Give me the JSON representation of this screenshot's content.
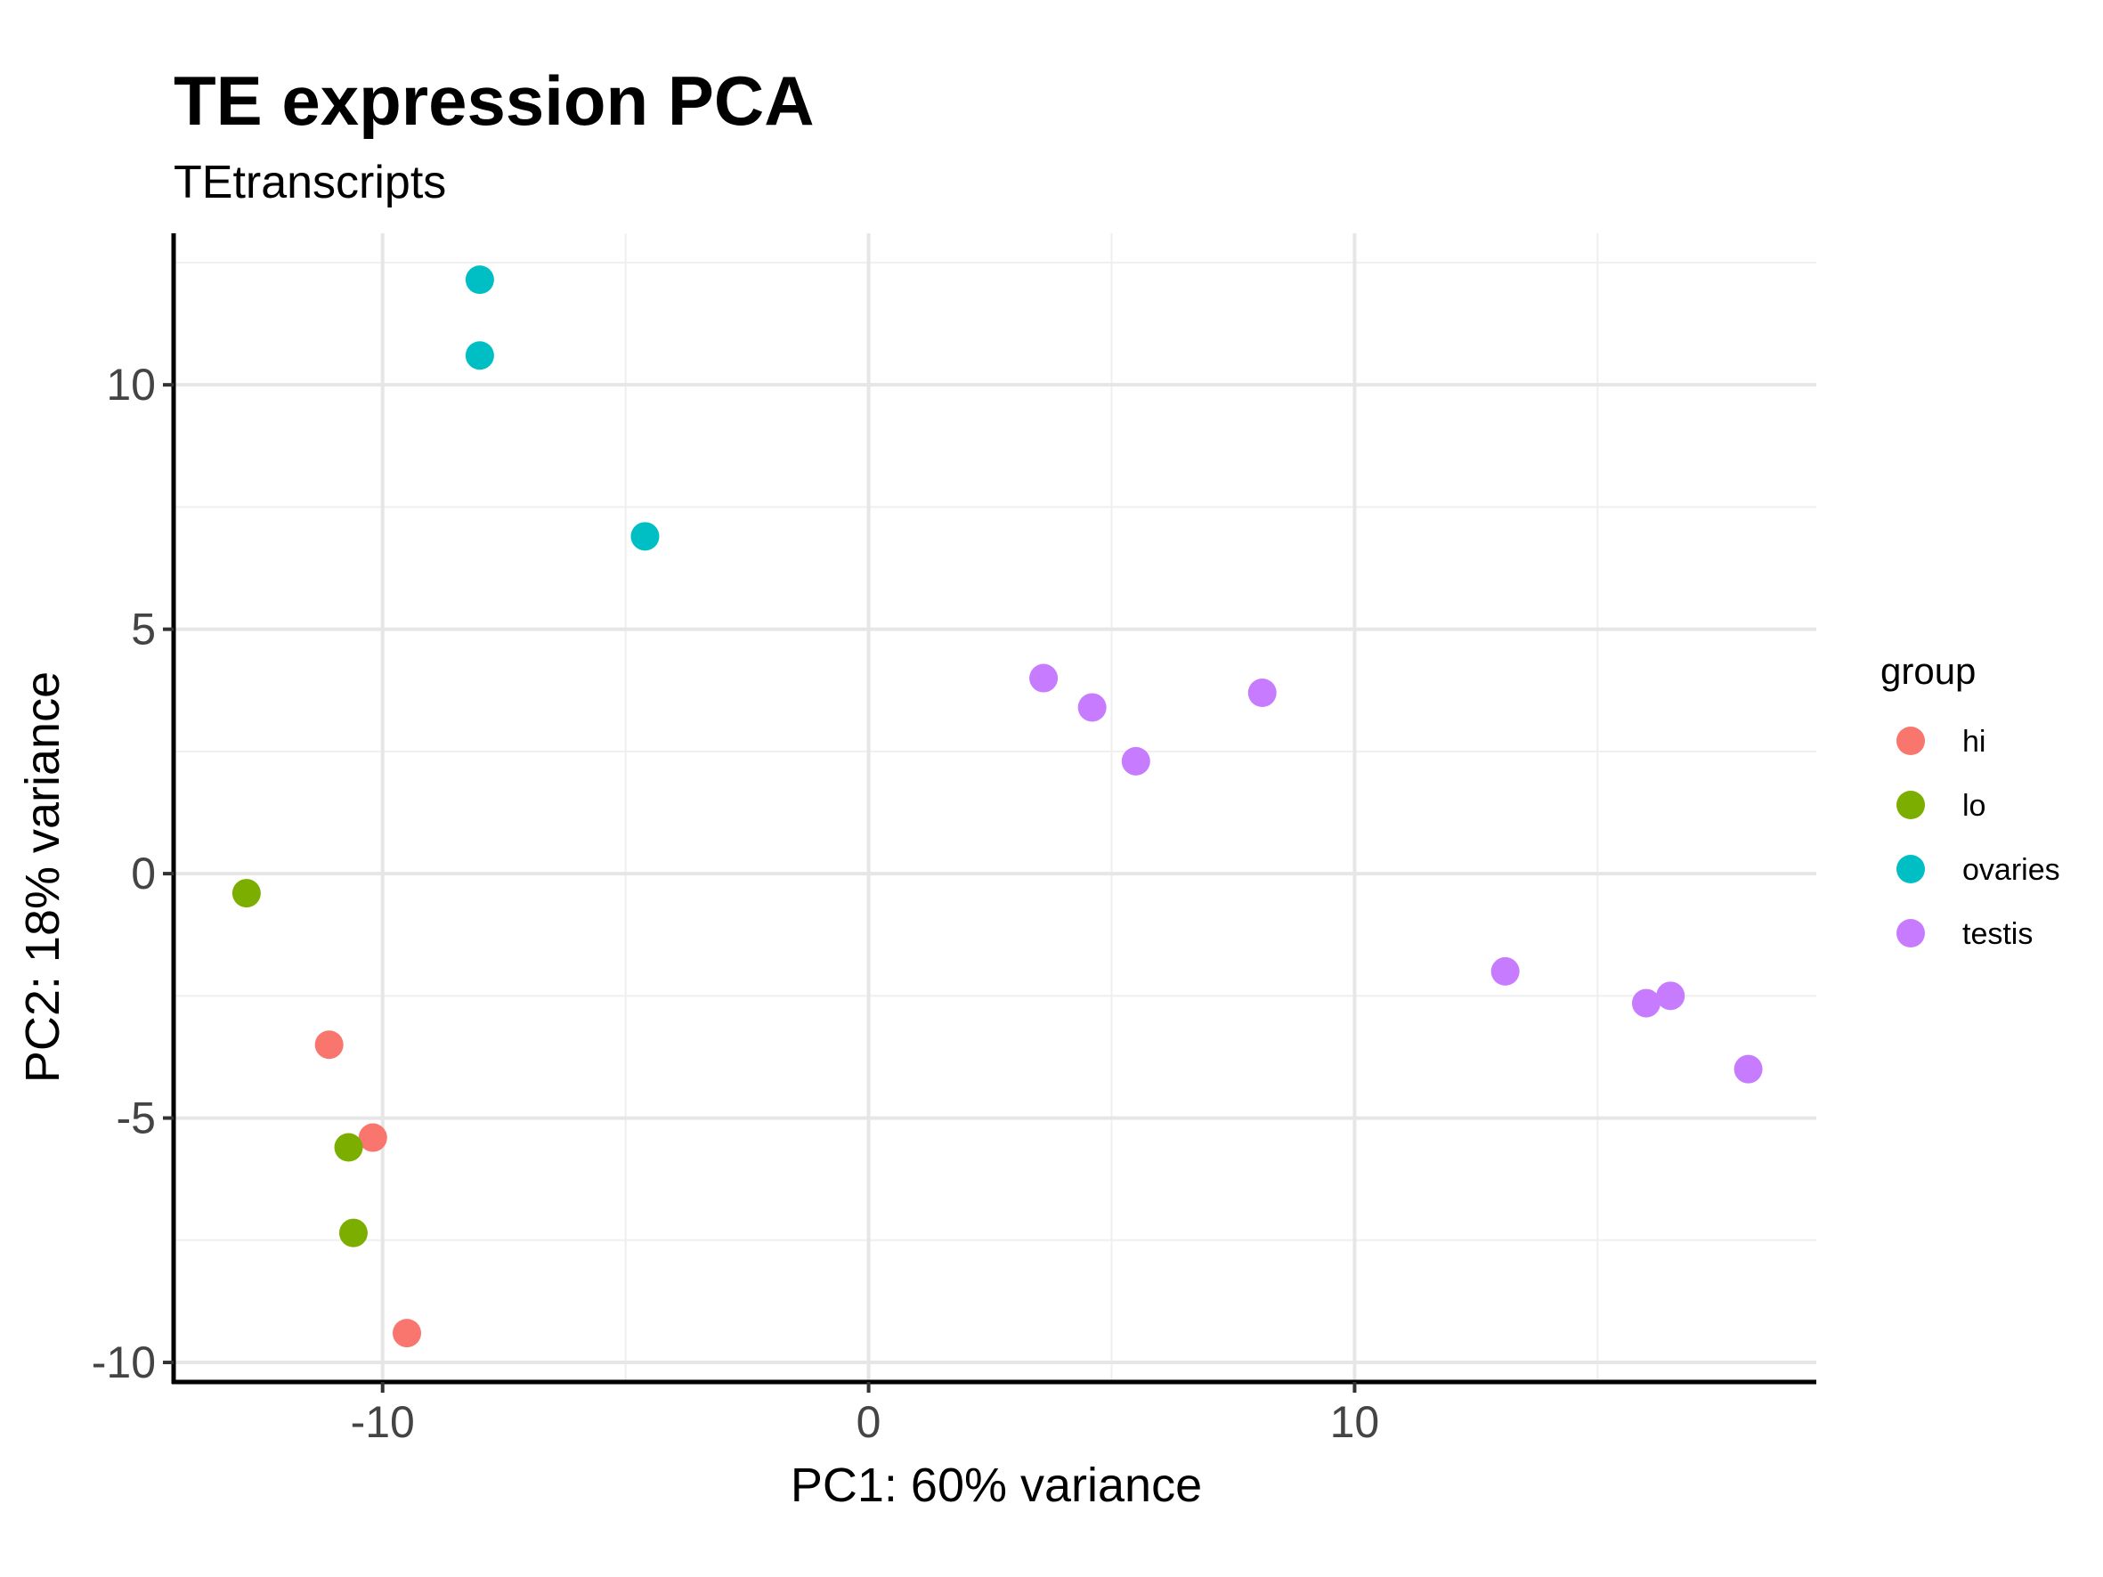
{
  "chart_data": {
    "type": "scatter",
    "title": "TE expression PCA",
    "subtitle": "TEtranscripts",
    "xlabel": "PC1: 60% variance",
    "ylabel": "PC2: 18% variance",
    "xlim": [
      -14.3,
      19.5
    ],
    "ylim": [
      -10.4,
      13.1
    ],
    "xticks": [
      -10,
      0,
      10
    ],
    "xtick_labels": [
      "-10",
      "0",
      "10"
    ],
    "yticks": [
      -10,
      -5,
      0,
      5,
      10
    ],
    "ytick_labels": [
      "-10",
      "-5",
      "0",
      "5",
      "10"
    ],
    "grid": true,
    "legend": {
      "title": "group",
      "placement": "right"
    },
    "series": [
      {
        "name": "hi",
        "color": "#F8766D",
        "points": [
          [
            -11.1,
            -3.5
          ],
          [
            -10.2,
            -5.4
          ],
          [
            -9.5,
            -9.4
          ]
        ]
      },
      {
        "name": "lo",
        "color": "#7CAE00",
        "points": [
          [
            -12.8,
            -0.4
          ],
          [
            -10.7,
            -5.6
          ],
          [
            -10.6,
            -7.35
          ]
        ]
      },
      {
        "name": "ovaries",
        "color": "#00BFC4",
        "points": [
          [
            -8.0,
            12.15
          ],
          [
            -8.0,
            10.6
          ],
          [
            -4.6,
            6.9
          ]
        ]
      },
      {
        "name": "testis",
        "color": "#C77CFF",
        "points": [
          [
            3.6,
            4.0
          ],
          [
            4.6,
            3.4
          ],
          [
            5.5,
            2.3
          ],
          [
            8.1,
            3.7
          ],
          [
            13.1,
            -2.0
          ],
          [
            16.0,
            -2.65
          ],
          [
            16.5,
            -2.5
          ],
          [
            18.1,
            -4.0
          ]
        ]
      }
    ]
  }
}
